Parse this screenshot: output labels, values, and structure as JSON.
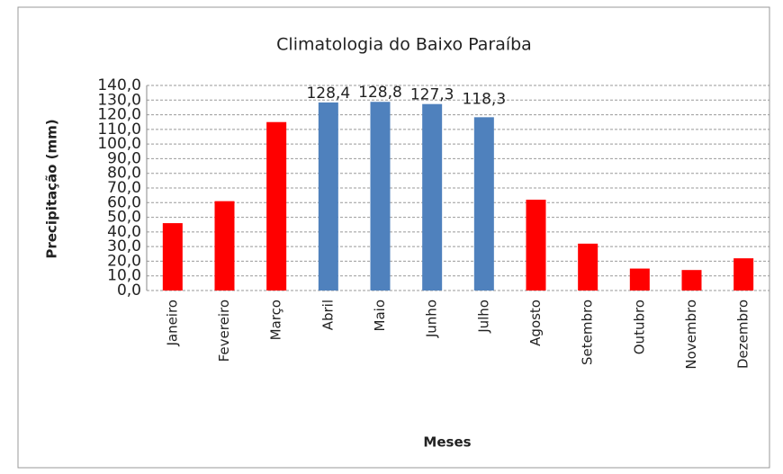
{
  "chart_data": {
    "type": "bar",
    "title": "Climatologia do Baixo Paraíba",
    "xlabel": "Meses",
    "ylabel": "Precipitação (mm)",
    "categories": [
      "Janeiro",
      "Fevereiro",
      "Março",
      "Abril",
      "Maio",
      "Junho",
      "Julho",
      "Agosto",
      "Setembro",
      "Outubro",
      "Novembro",
      "Dezembro"
    ],
    "values": [
      46,
      61,
      115,
      128.4,
      128.8,
      127.3,
      118.3,
      62,
      32,
      15,
      14,
      22
    ],
    "value_labels": [
      null,
      null,
      null,
      "128,4",
      "128,8",
      "127,3",
      "118,3",
      null,
      null,
      null,
      null,
      null
    ],
    "colors": [
      "#ff0000",
      "#ff0000",
      "#ff0000",
      "#4f81bd",
      "#4f81bd",
      "#4f81bd",
      "#4f81bd",
      "#ff0000",
      "#ff0000",
      "#ff0000",
      "#ff0000",
      "#ff0000"
    ],
    "ylim": [
      0,
      140
    ],
    "yticks": [
      {
        "value": 0,
        "label": "0,0"
      },
      {
        "value": 10,
        "label": "10,0"
      },
      {
        "value": 20,
        "label": "20,0"
      },
      {
        "value": 30,
        "label": "30,0"
      },
      {
        "value": 40,
        "label": "40,0"
      },
      {
        "value": 50,
        "label": "50,0"
      },
      {
        "value": 60,
        "label": "60,0"
      },
      {
        "value": 70,
        "label": "70,0"
      },
      {
        "value": 80,
        "label": "80,0"
      },
      {
        "value": 90,
        "label": "90,0"
      },
      {
        "value": 100,
        "label": "100,0"
      },
      {
        "value": 110,
        "label": "110,0"
      },
      {
        "value": 120,
        "label": "120,0"
      },
      {
        "value": 130,
        "label": "130,0"
      },
      {
        "value": 140,
        "label": "140,0"
      }
    ],
    "grid": true
  }
}
